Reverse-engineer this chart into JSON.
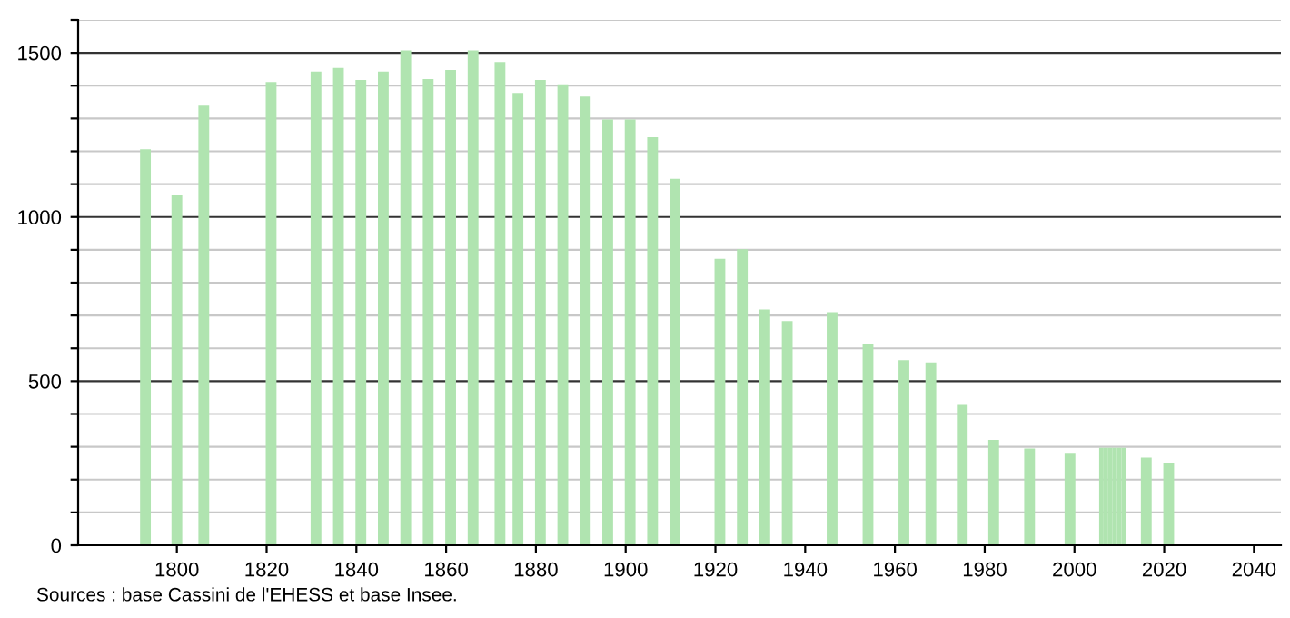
{
  "chart_data": {
    "type": "bar",
    "x": [
      1793,
      1800,
      1806,
      1821,
      1831,
      1836,
      1841,
      1846,
      1851,
      1856,
      1861,
      1866,
      1872,
      1876,
      1881,
      1886,
      1891,
      1896,
      1901,
      1906,
      1911,
      1921,
      1926,
      1931,
      1936,
      1946,
      1954,
      1962,
      1968,
      1975,
      1982,
      1990,
      1999,
      2006,
      2007,
      2008,
      2009,
      2010,
      2011,
      2016,
      2021
    ],
    "values": [
      1206,
      1066,
      1339,
      1411,
      1443,
      1454,
      1417,
      1443,
      1507,
      1420,
      1448,
      1507,
      1472,
      1378,
      1417,
      1404,
      1367,
      1297,
      1297,
      1243,
      1116,
      873,
      902,
      718,
      683,
      710,
      614,
      564,
      557,
      428,
      321,
      295,
      282,
      297,
      297,
      297,
      297,
      297,
      297,
      267,
      251
    ],
    "color": "#b0e4b0",
    "xlim": [
      1778,
      2046
    ],
    "xticks": [
      1800,
      1820,
      1840,
      1860,
      1880,
      1900,
      1920,
      1940,
      1960,
      1980,
      2000,
      2020,
      2040
    ],
    "ylim": [
      0,
      1600
    ],
    "yticks": [
      0,
      {
        "value": 100,
        "label": null
      },
      {
        "value": 200,
        "label": null
      },
      {
        "value": 300,
        "label": null
      },
      {
        "value": 400,
        "label": null
      },
      500,
      {
        "value": 600,
        "label": null
      },
      {
        "value": 700,
        "label": null
      },
      {
        "value": 800,
        "label": null
      },
      {
        "value": 900,
        "label": null
      },
      1000,
      {
        "value": 1100,
        "label": null
      },
      {
        "value": 1200,
        "label": null
      },
      {
        "value": 1300,
        "label": null
      },
      {
        "value": 1400,
        "label": null
      },
      1500,
      {
        "value": 1600,
        "label": null
      }
    ],
    "grid": "y",
    "annotations": [
      "Sources : base Cassini de l'EHESS et base Insee."
    ]
  }
}
